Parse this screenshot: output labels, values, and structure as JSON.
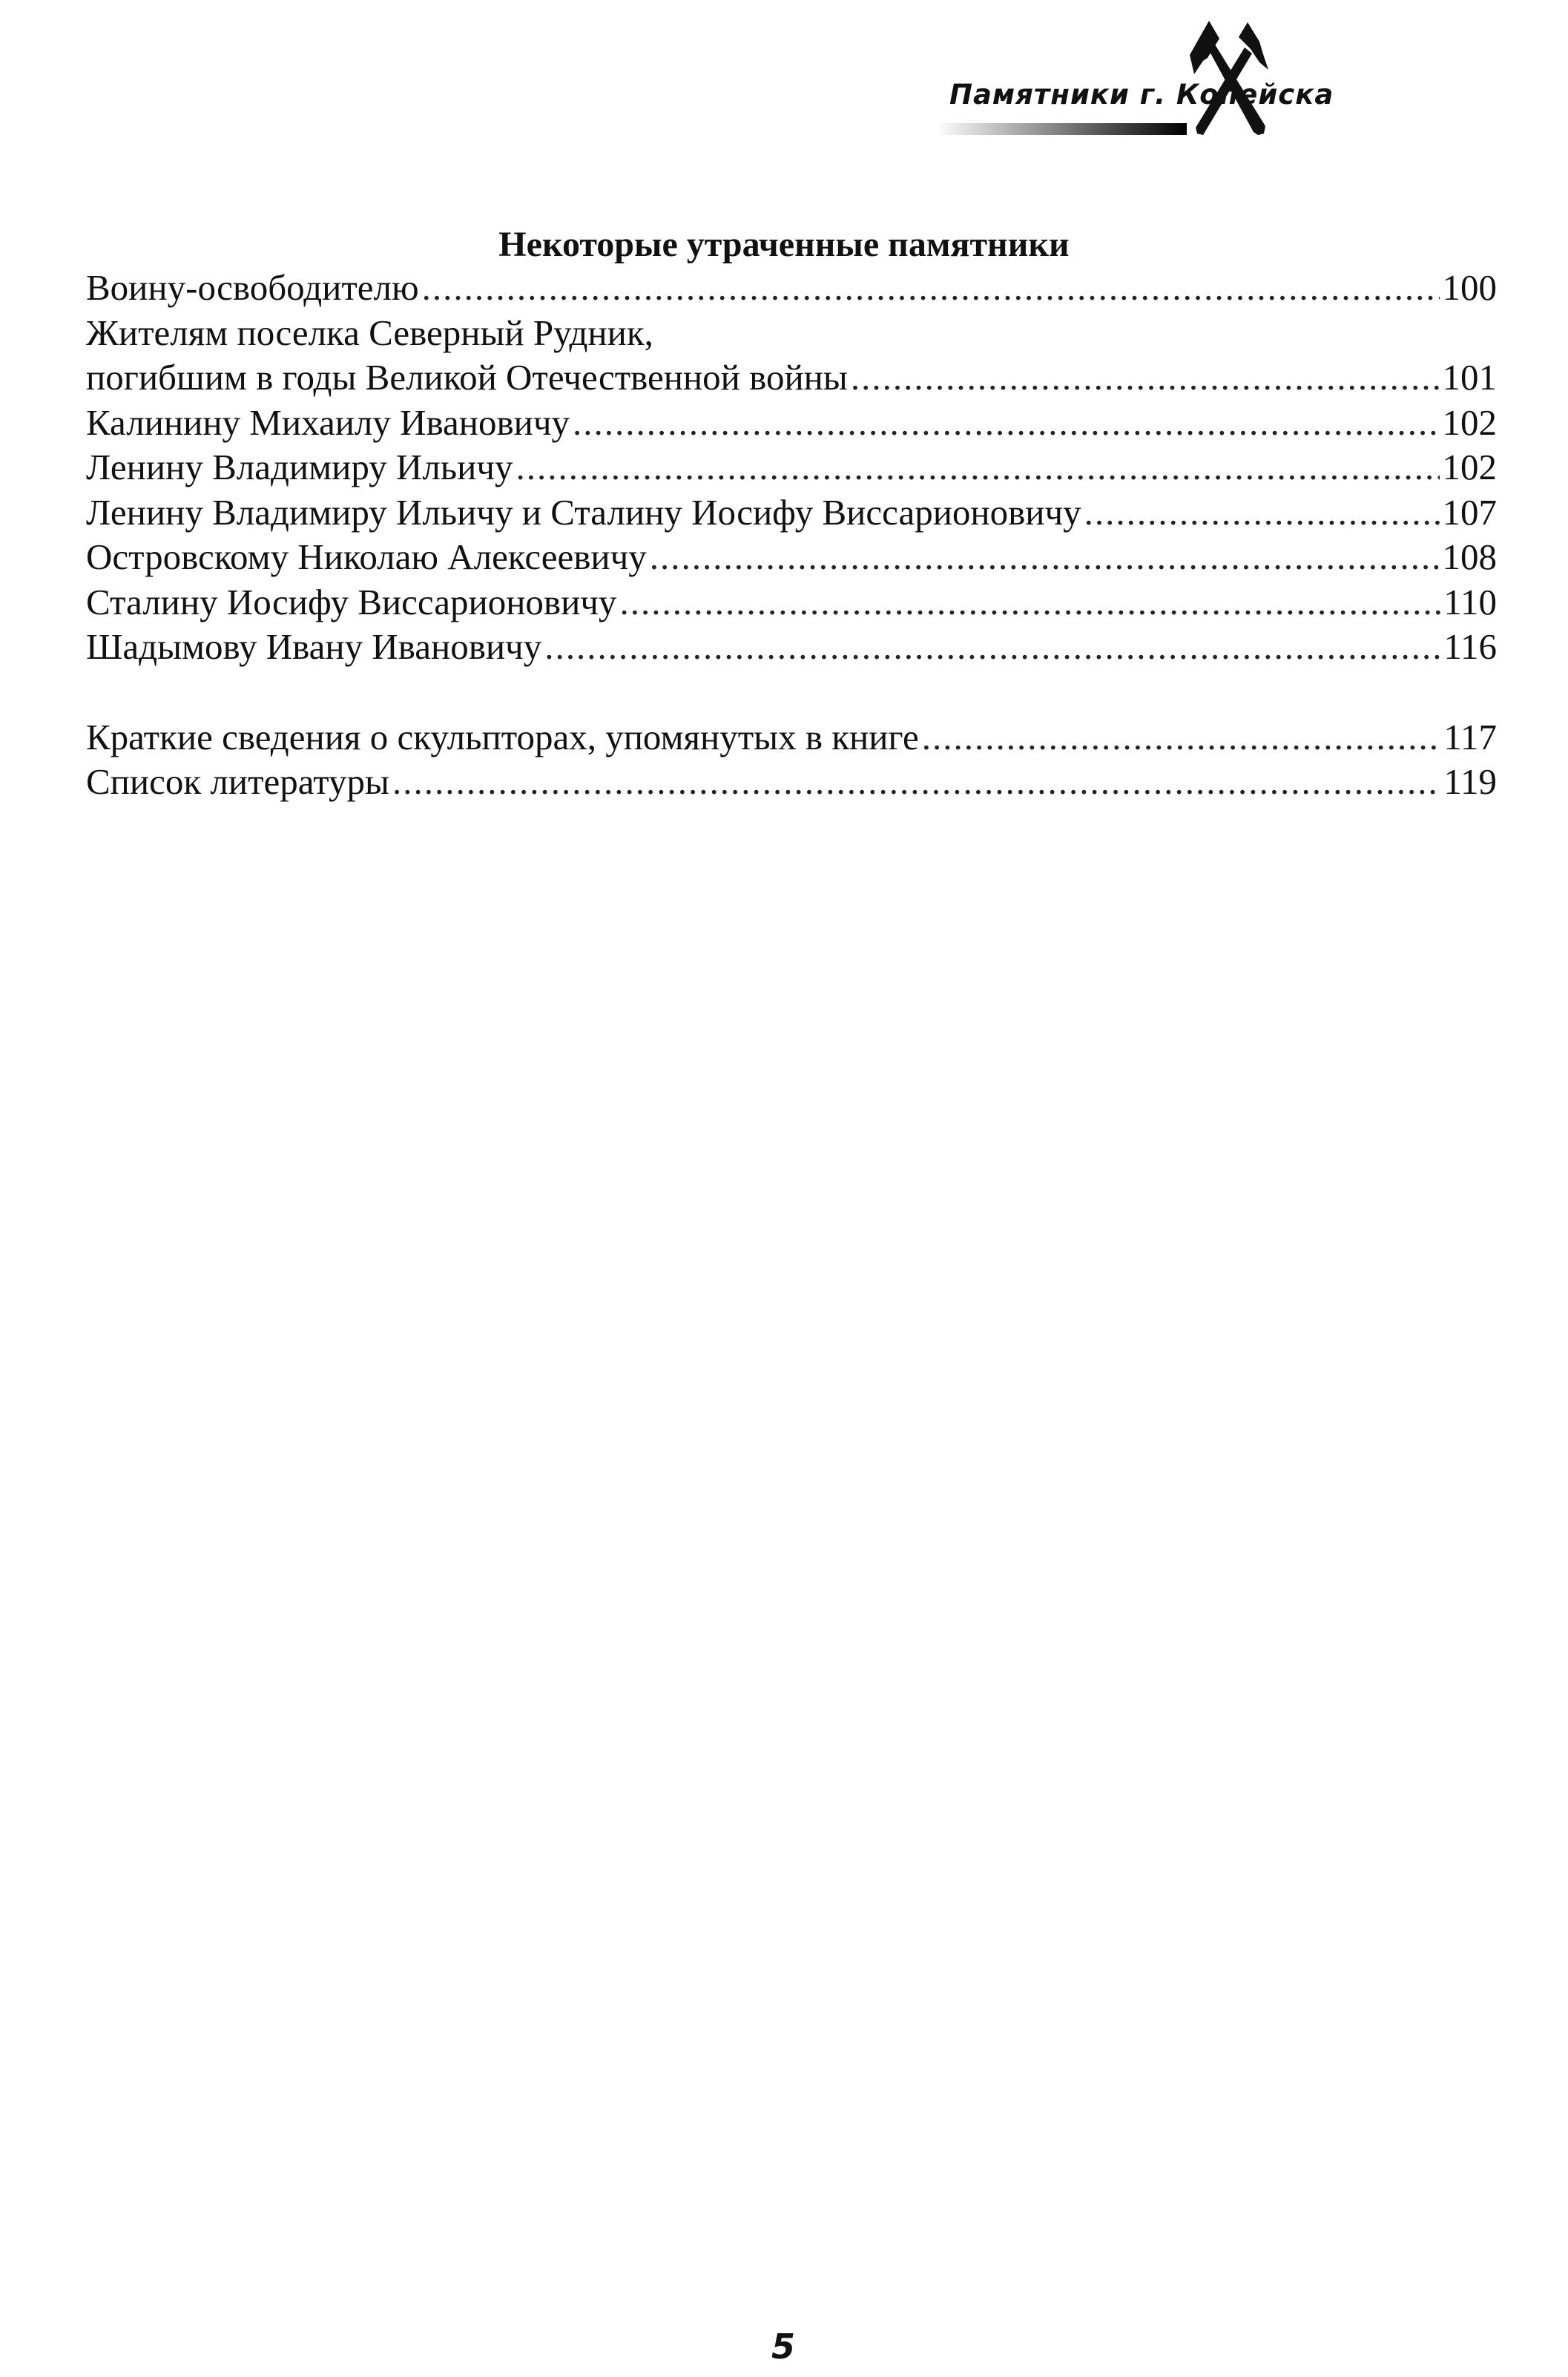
{
  "header": {
    "running_title": "Памятники г. Копейска",
    "logo_icon": "crossed-hammer-and-pick-icon"
  },
  "section": {
    "title": "Некоторые утраченные памятники",
    "entries": [
      {
        "label": "Воину-освободителю",
        "page": "100"
      },
      {
        "label": "Жителям поселка Северный Рудник,",
        "page": ""
      },
      {
        "label": "погибшим в годы Великой Отечественной войны",
        "page": "101"
      },
      {
        "label": "Калинину Михаилу Ивановичу",
        "page": "102"
      },
      {
        "label": "Ленину Владимиру Ильичу",
        "page": "102"
      },
      {
        "label": "Ленину Владимиру Ильичу и Сталину Иосифу Виссарионовичу",
        "page": "107"
      },
      {
        "label": "Островскому Николаю Алексеевичу",
        "page": "108"
      },
      {
        "label": "Сталину Иосифу Виссарионовичу",
        "page": "110"
      },
      {
        "label": "Шадымову Ивану Ивановичу",
        "page": "116"
      }
    ]
  },
  "appendix": [
    {
      "label": "Краткие сведения о скульпторах, упомянутых в книге",
      "page": "117"
    },
    {
      "label": "Список литературы",
      "page": "119"
    }
  ],
  "footer": {
    "page_number": "5"
  }
}
